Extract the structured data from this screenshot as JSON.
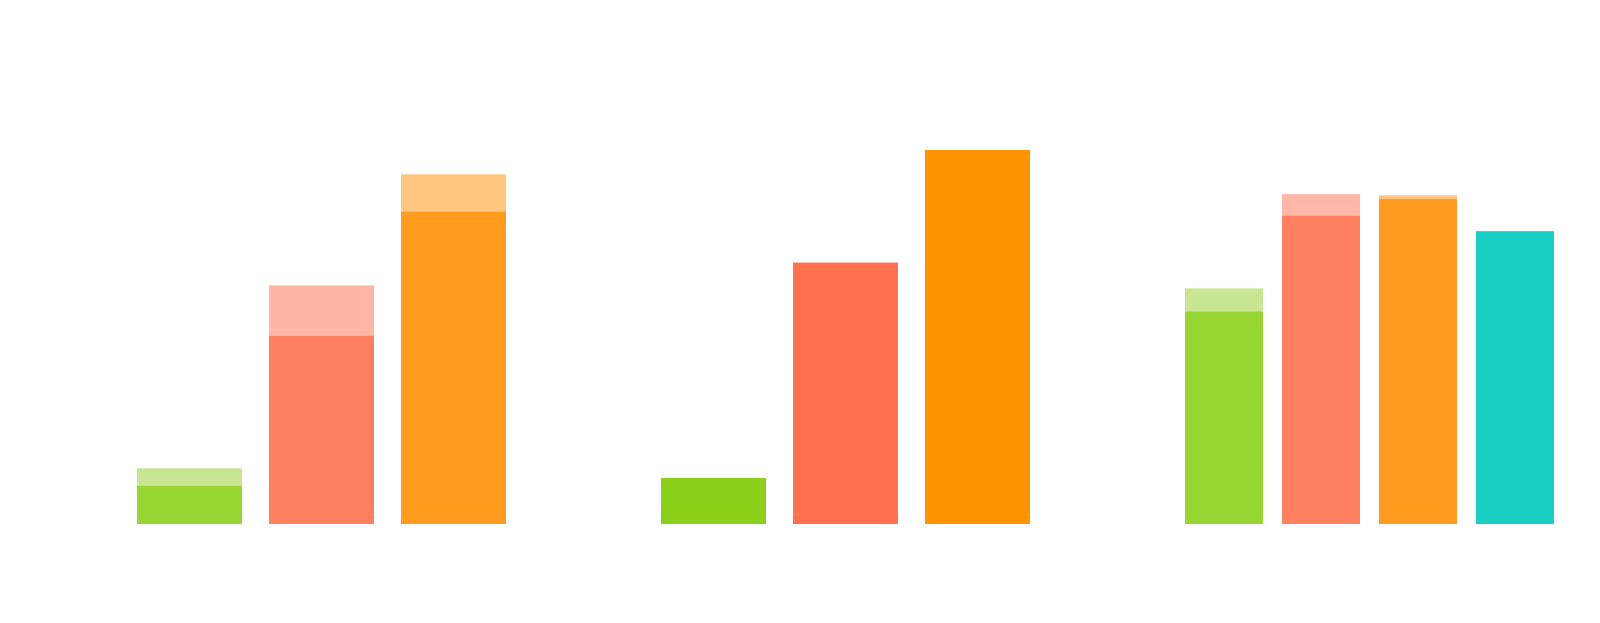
{
  "chart_data": {
    "type": "bar",
    "title": "",
    "xlabel": "",
    "ylabel": "",
    "ylim": [
      0,
      100
    ],
    "grid": false,
    "legend": "none",
    "groups": [
      {
        "bars": [
          {
            "value": 10.2,
            "overlay": 14.9,
            "color": "#97d532",
            "overlay_color": "#c7e593"
          },
          {
            "value": 50.3,
            "overlay": 63.8,
            "color": "#ff7f61",
            "overlay_color": "#ffb6a6"
          },
          {
            "value": 83.5,
            "overlay": 93.5,
            "color": "#ff9b1e",
            "overlay_color": "#ffc680"
          }
        ]
      },
      {
        "bars": [
          {
            "value": 12.3,
            "color": "#8bd11c"
          },
          {
            "value": 69.9,
            "color": "#ff714f"
          },
          {
            "value": 100.0,
            "color": "#ff9400"
          }
        ]
      },
      {
        "bars": [
          {
            "value": 56.8,
            "overlay": 63.0,
            "color": "#97d532",
            "overlay_color": "#c7e593"
          },
          {
            "value": 82.4,
            "overlay": 88.2,
            "color": "#ff7f61",
            "overlay_color": "#ffb6a6"
          },
          {
            "value": 86.9,
            "overlay": 87.9,
            "color": "#ff9b1e",
            "overlay_color": "#ffc680"
          },
          {
            "value": 78.3,
            "color": "#1acfc4"
          }
        ]
      }
    ]
  }
}
